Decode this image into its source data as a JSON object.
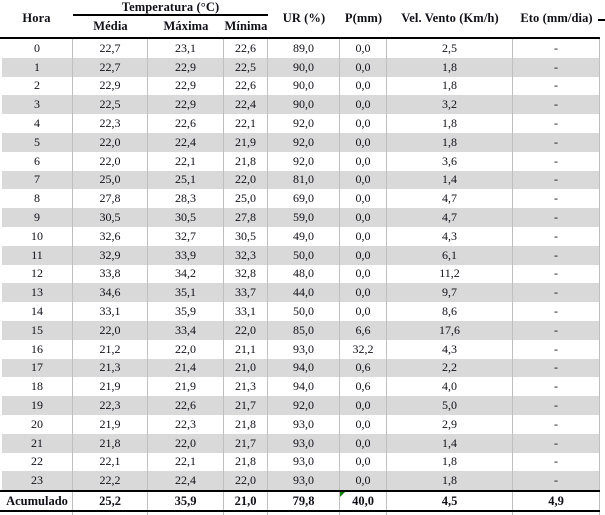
{
  "table": {
    "header": {
      "hora": "Hora",
      "temperatura_group": "Temperatura (°C)",
      "temp_subcols": [
        "Média",
        "Máxima",
        "Mínima"
      ],
      "ur": "UR (%)",
      "p": "P(mm)",
      "vel_vento": "Vel. Vento (Km/h)",
      "eto": "Eto (mm/dia)"
    },
    "rows": [
      [
        "0",
        "22,7",
        "23,1",
        "22,6",
        "89,0",
        "0,0",
        "2,5",
        "-"
      ],
      [
        "1",
        "22,7",
        "22,9",
        "22,5",
        "90,0",
        "0,0",
        "1,8",
        "-"
      ],
      [
        "2",
        "22,9",
        "22,9",
        "22,6",
        "90,0",
        "0,0",
        "1,8",
        "-"
      ],
      [
        "3",
        "22,5",
        "22,9",
        "22,4",
        "90,0",
        "0,0",
        "3,2",
        "-"
      ],
      [
        "4",
        "22,3",
        "22,6",
        "22,1",
        "92,0",
        "0,0",
        "1,8",
        "-"
      ],
      [
        "5",
        "22,0",
        "22,4",
        "21,9",
        "92,0",
        "0,0",
        "1,8",
        "-"
      ],
      [
        "6",
        "22,0",
        "22,1",
        "21,8",
        "92,0",
        "0,0",
        "3,6",
        "-"
      ],
      [
        "7",
        "25,0",
        "25,1",
        "22,0",
        "81,0",
        "0,0",
        "1,4",
        "-"
      ],
      [
        "8",
        "27,8",
        "28,3",
        "25,0",
        "69,0",
        "0,0",
        "4,7",
        "-"
      ],
      [
        "9",
        "30,5",
        "30,5",
        "27,8",
        "59,0",
        "0,0",
        "4,7",
        "-"
      ],
      [
        "10",
        "32,6",
        "32,7",
        "30,5",
        "49,0",
        "0,0",
        "4,3",
        "-"
      ],
      [
        "11",
        "32,9",
        "33,9",
        "32,3",
        "50,0",
        "0,0",
        "6,1",
        "-"
      ],
      [
        "12",
        "33,8",
        "34,2",
        "32,8",
        "48,0",
        "0,0",
        "11,2",
        "-"
      ],
      [
        "13",
        "34,6",
        "35,1",
        "33,7",
        "44,0",
        "0,0",
        "9,7",
        "-"
      ],
      [
        "14",
        "33,1",
        "35,9",
        "33,1",
        "50,0",
        "0,0",
        "8,6",
        "-"
      ],
      [
        "15",
        "22,0",
        "33,4",
        "22,0",
        "85,0",
        "6,6",
        "17,6",
        "-"
      ],
      [
        "16",
        "21,2",
        "22,0",
        "21,1",
        "93,0",
        "32,2",
        "4,3",
        "-"
      ],
      [
        "17",
        "21,3",
        "21,4",
        "21,0",
        "94,0",
        "0,6",
        "2,2",
        "-"
      ],
      [
        "18",
        "21,9",
        "21,9",
        "21,3",
        "94,0",
        "0,6",
        "4,0",
        "-"
      ],
      [
        "19",
        "22,3",
        "22,6",
        "21,7",
        "92,0",
        "0,0",
        "5,0",
        "-"
      ],
      [
        "20",
        "21,9",
        "22,3",
        "21,8",
        "93,0",
        "0,0",
        "2,9",
        "-"
      ],
      [
        "21",
        "21,8",
        "22,0",
        "21,7",
        "93,0",
        "0,0",
        "1,4",
        "-"
      ],
      [
        "22",
        "22,1",
        "22,1",
        "21,8",
        "93,0",
        "0,0",
        "1,8",
        "-"
      ],
      [
        "23",
        "22,2",
        "22,4",
        "22,0",
        "93,0",
        "0,0",
        "1,8",
        "-"
      ]
    ],
    "footer": {
      "label": "Acumulado",
      "values": [
        "25,2",
        "35,9",
        "21,0",
        "79,8",
        "40,0",
        "4,5",
        "4,9"
      ],
      "error_marker_column": "P(mm)"
    },
    "colors": {
      "stripe": "#d9d9d9",
      "grid": "#bfbfbf",
      "border": "#000000",
      "text": "#101019",
      "error_marker_green": "#008000"
    }
  }
}
